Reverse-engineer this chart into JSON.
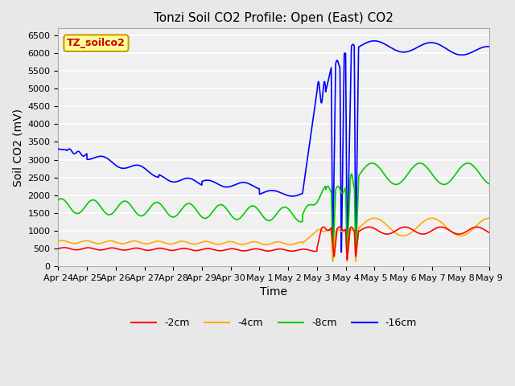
{
  "title": "Tonzi Soil CO2 Profile: Open (East) CO2",
  "xlabel": "Time",
  "ylabel": "Soil CO2 (mV)",
  "ylim": [
    0,
    6700
  ],
  "yticks": [
    0,
    500,
    1000,
    1500,
    2000,
    2500,
    3000,
    3500,
    4000,
    4500,
    5000,
    5500,
    6000,
    6500
  ],
  "bg_color": "#e8e8e8",
  "plot_bg": "#f0f0f0",
  "grid_color": "#ffffff",
  "label_box_color": "#ffff99",
  "label_box_edge": "#cc9900",
  "label_text": "TZ_soilco2",
  "label_text_color": "#cc0000",
  "colors": {
    "2cm": "#ff0000",
    "4cm": "#ffaa00",
    "8cm": "#00cc00",
    "16cm": "#0000ff"
  },
  "legend_labels": [
    "-2cm",
    "-4cm",
    "-8cm",
    "-16cm"
  ],
  "x_tick_labels": [
    "Apr 24",
    "Apr 25",
    "Apr 26",
    "Apr 27",
    "Apr 28",
    "Apr 29",
    "Apr 30",
    "May 1",
    "May 2",
    "May 3",
    "May 4",
    "May 5",
    "May 6",
    "May 7",
    "May 8",
    "May 9"
  ]
}
